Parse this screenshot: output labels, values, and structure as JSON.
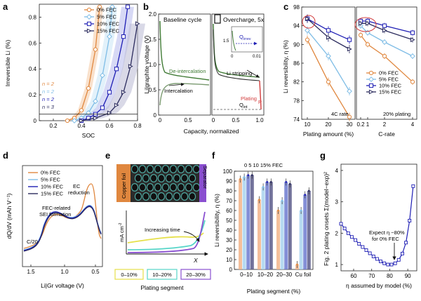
{
  "colors": {
    "c0": "#e0873e",
    "c5": "#7fbde6",
    "c10": "#1e1eb4",
    "c15": "#2c2c5e",
    "green": "#3f7a34",
    "red": "#d23c3c"
  },
  "panel_labels": [
    "a",
    "b",
    "c",
    "d",
    "e",
    "f",
    "g"
  ],
  "chart_data": [
    {
      "id": "a",
      "type": "line",
      "xlabel": "SOC",
      "ylabel": "Irreversible Li (%)",
      "xlim": [
        0.1,
        0.8
      ],
      "ylim": [
        0,
        0.9
      ],
      "xticks": [
        "0.2",
        "0.4",
        "0.6",
        "0.8"
      ],
      "yticks": [
        "0",
        "0.2",
        "0.4",
        "0.6",
        "0.8"
      ],
      "legend": [
        "0% FEC",
        "5% FEC",
        "10% FEC",
        "15% FEC"
      ],
      "n_labels": [
        "n = 2",
        "n = 2",
        "n = 2",
        "n = 3"
      ],
      "threshold": 0.05,
      "series": [
        {
          "name": "0% FEC",
          "x": [
            0.3,
            0.35,
            0.4,
            0.45,
            0.5,
            0.53
          ],
          "y": [
            0.0,
            0.02,
            0.08,
            0.25,
            0.55,
            0.88
          ]
        },
        {
          "name": "5% FEC",
          "x": [
            0.35,
            0.4,
            0.45,
            0.5,
            0.55,
            0.6,
            0.62
          ],
          "y": [
            0.0,
            0.02,
            0.06,
            0.15,
            0.35,
            0.65,
            0.88
          ]
        },
        {
          "name": "10% FEC",
          "x": [
            0.4,
            0.45,
            0.5,
            0.55,
            0.6,
            0.65,
            0.7,
            0.73
          ],
          "y": [
            0.0,
            0.02,
            0.05,
            0.1,
            0.22,
            0.4,
            0.65,
            0.88
          ]
        },
        {
          "name": "15% FEC",
          "x": [
            0.4,
            0.5,
            0.6,
            0.65,
            0.7,
            0.75,
            0.8
          ],
          "y": [
            0.0,
            0.02,
            0.06,
            0.12,
            0.22,
            0.42,
            0.75
          ]
        }
      ]
    },
    {
      "id": "b",
      "type": "line",
      "ylabel": "Li|graphite voltage (V)",
      "xlabel": "Capacity, normalized",
      "ylim": [
        0,
        2
      ],
      "yticks": [
        "0",
        "0.5",
        "1.0",
        "1.5",
        "2.0"
      ],
      "left_title": "Baseline cycle",
      "right_title": "Overcharge, 5x",
      "left_xticks": [
        "0",
        "0.5"
      ],
      "right_xticks": [
        "0",
        "0.5",
        "1.0"
      ],
      "annotations": {
        "deintercalation": "De-intercalation",
        "intercalation": "Intercalation",
        "li_stripping": "Li stripping",
        "plating": "Plating",
        "q_irrev": "Q",
        "q_irrev_sub": "irrev",
        "q_int": "Q",
        "q_int_sub": "int",
        "p": "P",
        "inset_yt": "1.5",
        "inset_x0": "0",
        "inset_x1": "0.01"
      }
    },
    {
      "id": "c",
      "type": "line",
      "ylabel": "Li reversibility, η (%)",
      "ylim": [
        74,
        98
      ],
      "yticks": [
        "74",
        "78",
        "82",
        "86",
        "90",
        "94",
        "98"
      ],
      "left": {
        "xlabel": "Plating amount (%)",
        "xticks": [
          "10",
          "20",
          "30"
        ],
        "x": [
          10,
          20,
          30
        ],
        "note": "4C rate"
      },
      "right": {
        "xlabel": "C-rate",
        "xticks": [
          "0.2",
          "1",
          "2",
          "4"
        ],
        "x": [
          0.2,
          1,
          2,
          4
        ],
        "note": "20% plating"
      },
      "legend": [
        "0% FEC",
        "5% FEC",
        "10% FEC",
        "15% FEC"
      ],
      "series": [
        {
          "name": "0% FEC",
          "left": [
            91,
            82,
            74.5
          ],
          "right": [
            92,
            90,
            87.5,
            82
          ]
        },
        {
          "name": "5% FEC",
          "left": [
            93,
            87.5,
            80
          ],
          "right": [
            94,
            92.5,
            90.5,
            87.5
          ]
        },
        {
          "name": "10% FEC",
          "left": [
            95.5,
            93,
            91
          ],
          "right": [
            95,
            95,
            94,
            92.5
          ]
        },
        {
          "name": "15% FEC",
          "left": [
            95.5,
            91.5,
            89
          ],
          "right": [
            94.5,
            94.5,
            93,
            91
          ]
        }
      ]
    },
    {
      "id": "d",
      "type": "line",
      "ylabel": "dQ/dV (mAh V⁻¹)",
      "xlabel": "Li|Gr voltage (V)",
      "xticks": [
        "1.5",
        "1.0",
        "0.5"
      ],
      "legend": [
        "0% FEC",
        "5% FEC",
        "10% FEC",
        "15% FEC"
      ],
      "annotations": {
        "ec": "EC",
        "ec2": "reduction",
        "fec": "FEC-related",
        "fec2": "SEI formation",
        "rate": "C/20"
      }
    },
    {
      "id": "e",
      "type": "line",
      "labels": {
        "copper": "Copper foil",
        "separator": "Separator",
        "yaxis": "mA cm",
        "yaxis_sup": "-2",
        "increasing": "Increasing time",
        "x": "X",
        "segment": "Plating segment"
      },
      "segments": [
        "0–10%",
        "10–20%",
        "20–30%"
      ]
    },
    {
      "id": "f",
      "type": "bar",
      "ylabel": "Li reversibility, η (%)",
      "xlabel": "Plating segment (%)",
      "ylim": [
        0,
        100
      ],
      "yticks": [
        "0",
        "10",
        "20",
        "30",
        "40",
        "50",
        "60",
        "70",
        "80",
        "90",
        "100"
      ],
      "categories": [
        "0–10",
        "10–20",
        "20–30",
        "Cu foil"
      ],
      "fec_header": "0  5  10  15% FEC",
      "series": [
        {
          "name": "0% FEC",
          "values": [
            92,
            71,
            60,
            5
          ]
        },
        {
          "name": "5% FEC",
          "values": [
            94,
            84,
            70,
            60
          ]
        },
        {
          "name": "10% FEC",
          "values": [
            96,
            89,
            89,
            76
          ]
        },
        {
          "name": "15% FEC",
          "values": [
            96,
            89,
            87,
            80
          ]
        }
      ]
    },
    {
      "id": "g",
      "type": "line",
      "ylabel": "Fig. 2 plating onsets Σ(model−exp)²",
      "xlabel": "η assumed by model (%)",
      "xlim": [
        53,
        95
      ],
      "ylim": [
        0.8,
        4.2
      ],
      "xticks": [
        "60",
        "70",
        "80",
        "90"
      ],
      "yticks": [
        "1",
        "2",
        "3",
        "4"
      ],
      "annotation": [
        "Expect η ~80%",
        "for 0% FEC"
      ],
      "x": [
        53,
        55,
        57,
        59,
        61,
        63,
        65,
        67,
        69,
        71,
        73,
        75,
        77,
        79,
        81,
        83,
        85,
        87,
        89,
        91,
        93
      ],
      "y": [
        2.3,
        2.15,
        2.0,
        1.88,
        1.78,
        1.66,
        1.56,
        1.46,
        1.36,
        1.26,
        1.18,
        1.1,
        1.04,
        1.0,
        1.0,
        1.04,
        1.15,
        1.35,
        1.7,
        2.4,
        3.5
      ]
    }
  ]
}
